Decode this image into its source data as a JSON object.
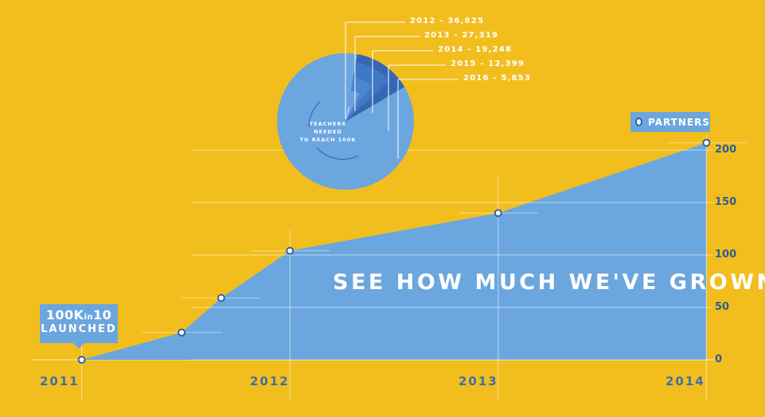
{
  "headline": "SEE HOW MUCH WE'VE GROWN",
  "legend": {
    "label": "PARTNERS"
  },
  "badge": {
    "line1_big": "100K",
    "line1_small": "in",
    "line1_end": "10",
    "line2": "LAUNCHED"
  },
  "pie_center": {
    "line1": "TEACHERS",
    "line2": "NEEDED",
    "line3": "TO REACH 100K"
  },
  "colors": {
    "background": "#F2BE1E",
    "area": "#6BA6DE",
    "accent": "#2F62A8",
    "axis_text": "#3F6FA6"
  },
  "chart_data": [
    {
      "type": "area",
      "series": [
        {
          "name": "PARTNERS",
          "x": [
            2011.0,
            2011.48,
            2011.67,
            2012.0,
            2013.0,
            2014.0
          ],
          "values": [
            0,
            26,
            59,
            104,
            140,
            207
          ]
        }
      ],
      "x_tick_labels": [
        "2011",
        "2012",
        "2013",
        "2014"
      ],
      "x_ticks": [
        2011,
        2012,
        2013,
        2014
      ],
      "xlim": [
        2010.99,
        2014.01
      ],
      "y_tick_labels": [
        "0",
        "50",
        "100",
        "150",
        "200"
      ],
      "y_ticks": [
        0,
        50,
        100,
        150,
        200
      ],
      "ylim": [
        0,
        250
      ],
      "grid": true,
      "legend_position": "top-right"
    },
    {
      "type": "pie",
      "labels": [
        "2012 - 36,825",
        "2013 - 27,319",
        "2014 - 19,248",
        "2015 - 12,399",
        "2016 - 5,853"
      ],
      "categories": [
        "2012",
        "2013",
        "2014",
        "2015",
        "2016"
      ],
      "values": [
        36825,
        27319,
        19248,
        12399,
        5853
      ],
      "note": "Teachers needed to reach 100K"
    }
  ]
}
